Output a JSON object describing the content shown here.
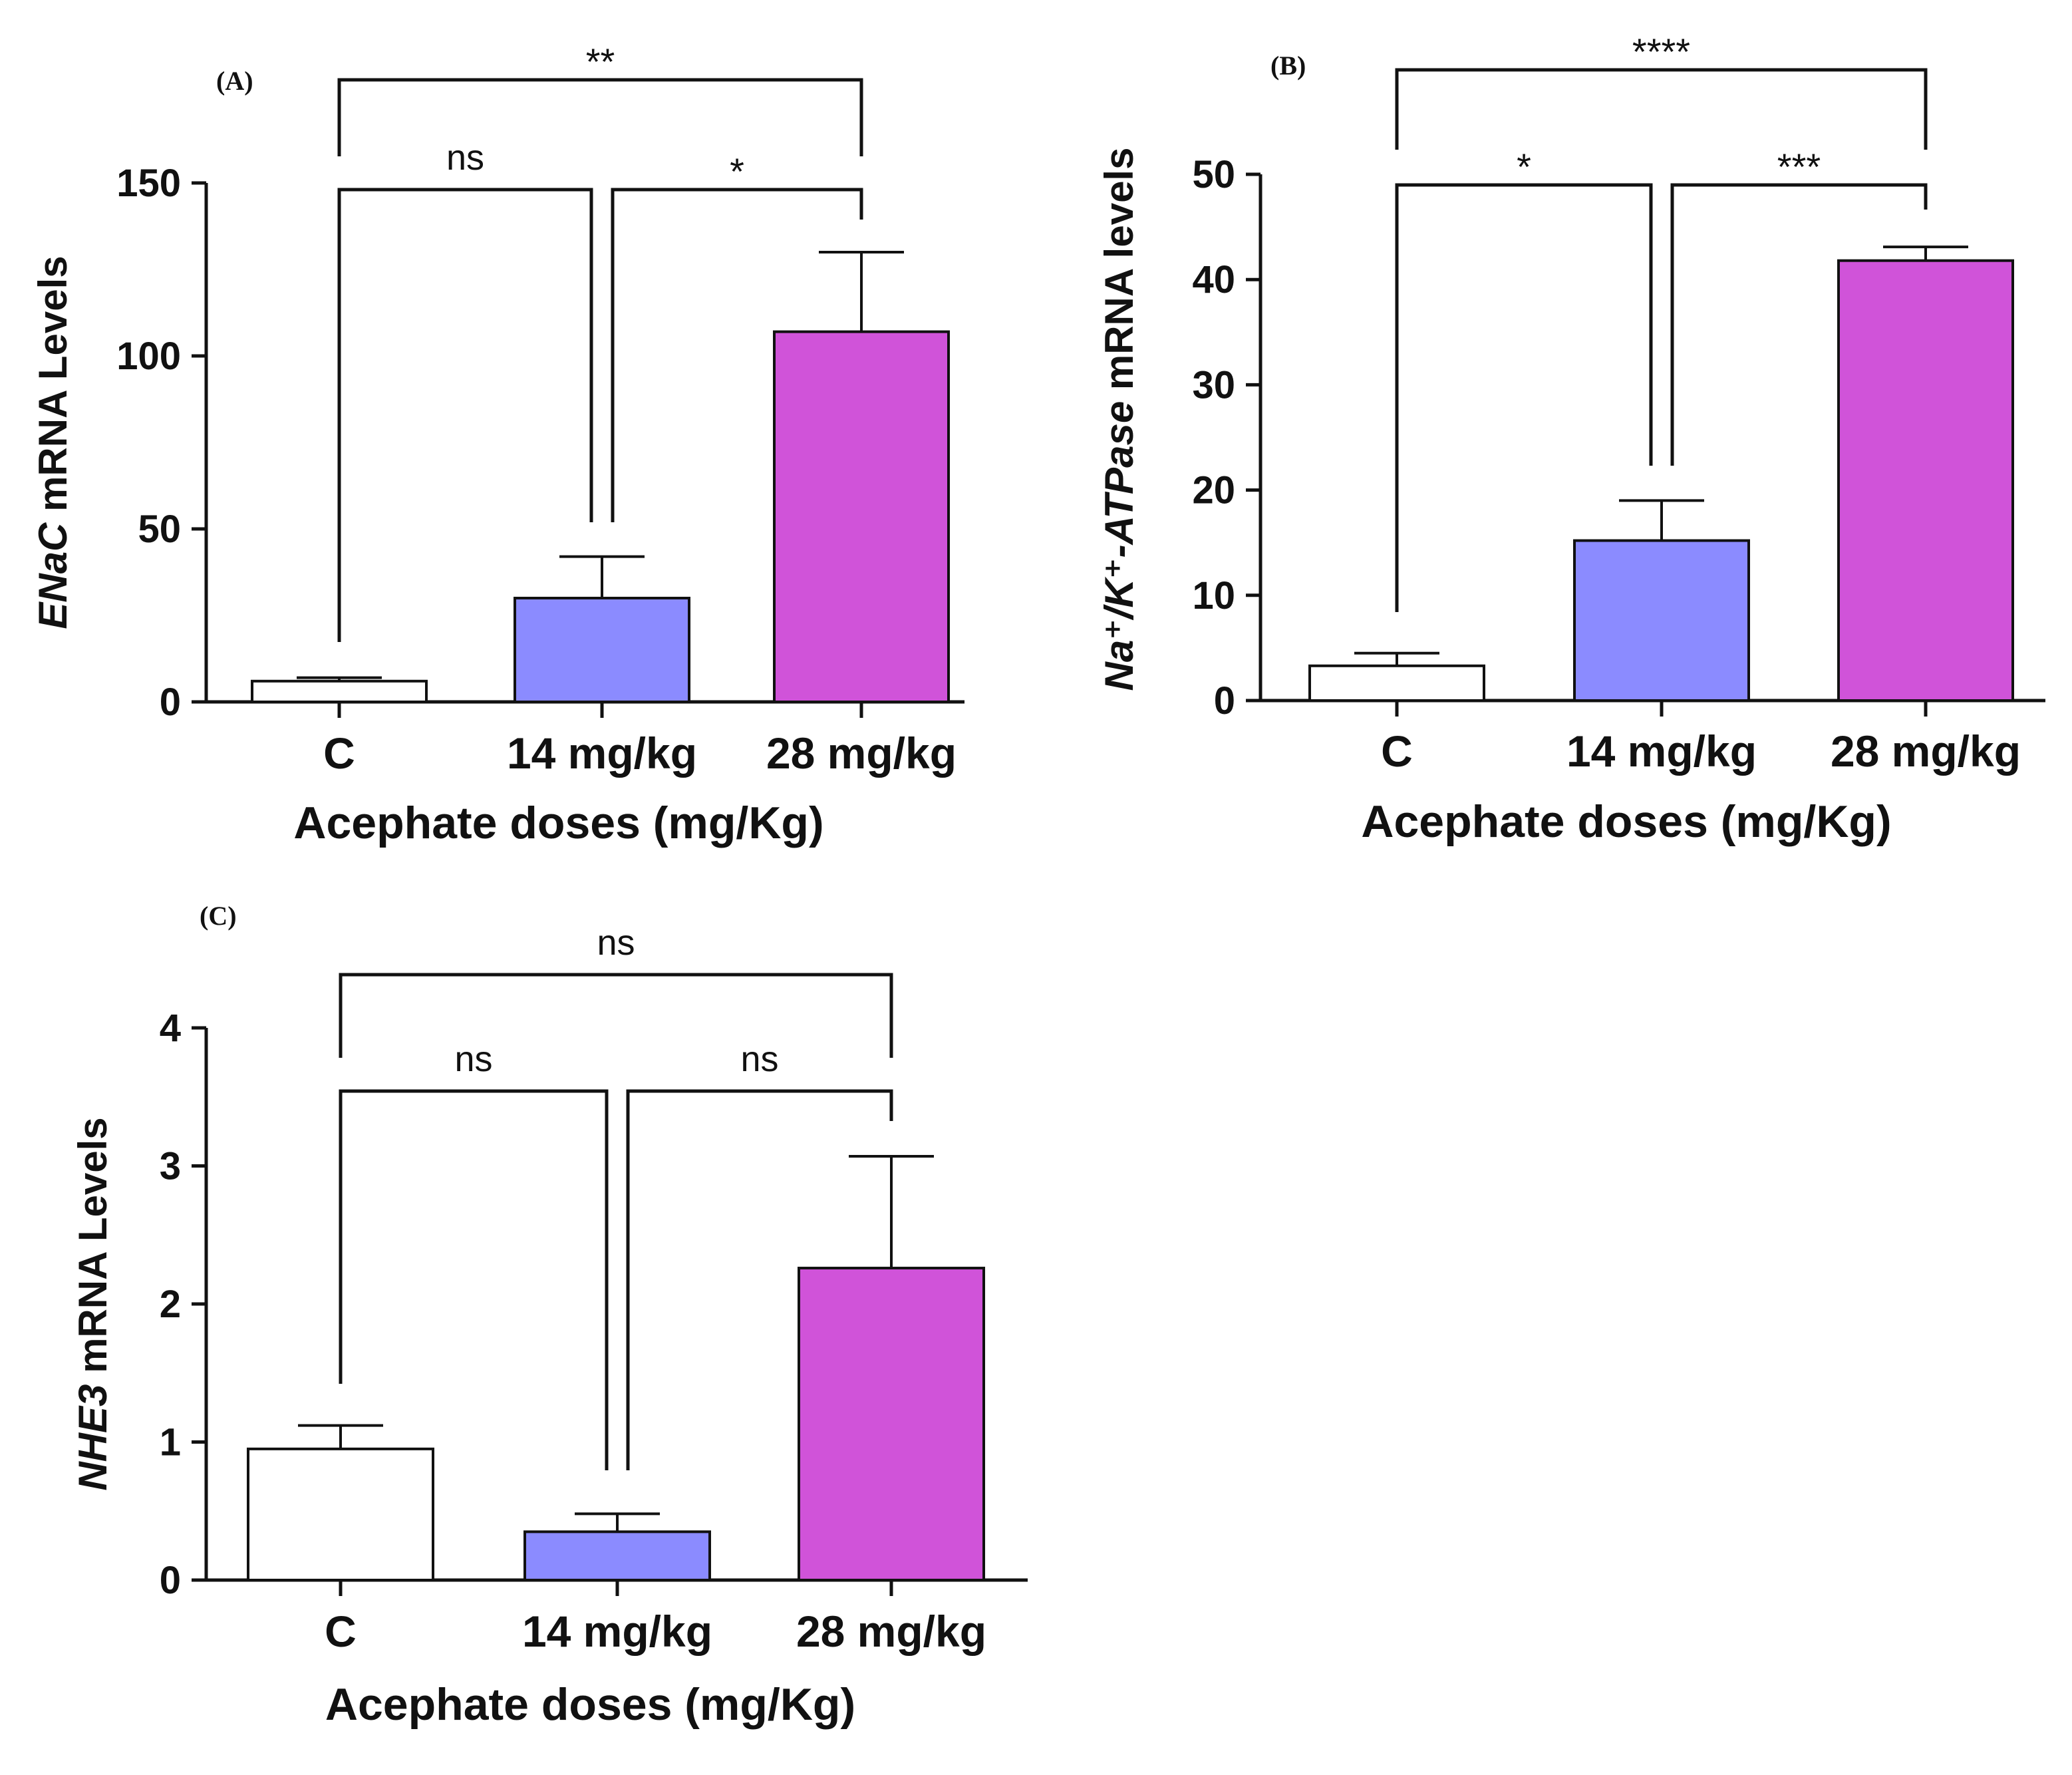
{
  "figure": {
    "panels": [
      "(A)",
      "(B)",
      "(C)"
    ]
  },
  "colors": {
    "control": "#ffffff",
    "dose14": "#8b8bff",
    "dose28": "#d053d9",
    "ink": "#111111"
  },
  "chart_data": [
    {
      "panel": "(A)",
      "type": "bar",
      "categories": [
        "C",
        "14 mg/kg",
        "28 mg/kg"
      ],
      "values": [
        6,
        30,
        107
      ],
      "errors": [
        1,
        12,
        23
      ],
      "title": "",
      "xlabel": "Acephate doses (mg/Kg)",
      "ylabel_gene": "ENaC",
      "ylabel_rest": " mRNA Levels",
      "ylim": [
        0,
        150
      ],
      "yticks": [
        0,
        50,
        100,
        150
      ],
      "significance": [
        {
          "from": 0,
          "to": 1,
          "label": "ns"
        },
        {
          "from": 1,
          "to": 2,
          "label": "*"
        },
        {
          "from": 0,
          "to": 2,
          "label": "**"
        }
      ]
    },
    {
      "panel": "(B)",
      "type": "bar",
      "categories": [
        "C",
        "14 mg/kg",
        "28 mg/kg"
      ],
      "values": [
        3.3,
        15.2,
        41.8
      ],
      "errors": [
        1.2,
        3.8,
        1.3
      ],
      "title": "",
      "xlabel": "Acephate doses (mg/Kg)",
      "ylabel_gene": "Na⁺/K⁺-ATPase",
      "ylabel_rest": " mRNA levels",
      "ylim": [
        0,
        50
      ],
      "yticks": [
        0,
        10,
        20,
        30,
        40,
        50
      ],
      "significance": [
        {
          "from": 0,
          "to": 1,
          "label": "*"
        },
        {
          "from": 1,
          "to": 2,
          "label": "***"
        },
        {
          "from": 0,
          "to": 2,
          "label": "****"
        }
      ]
    },
    {
      "panel": "(C)",
      "type": "bar",
      "categories": [
        "C",
        "14 mg/kg",
        "28 mg/kg"
      ],
      "values": [
        0.95,
        0.35,
        2.26
      ],
      "errors": [
        0.17,
        0.13,
        0.81
      ],
      "title": "",
      "xlabel": "Acephate doses (mg/Kg)",
      "ylabel_gene": "NHE3",
      "ylabel_rest": " mRNA Levels",
      "ylim": [
        0,
        4
      ],
      "yticks": [
        0,
        1,
        2,
        3,
        4
      ],
      "significance": [
        {
          "from": 0,
          "to": 1,
          "label": "ns"
        },
        {
          "from": 1,
          "to": 2,
          "label": "ns"
        },
        {
          "from": 0,
          "to": 2,
          "label": "ns"
        }
      ]
    }
  ]
}
